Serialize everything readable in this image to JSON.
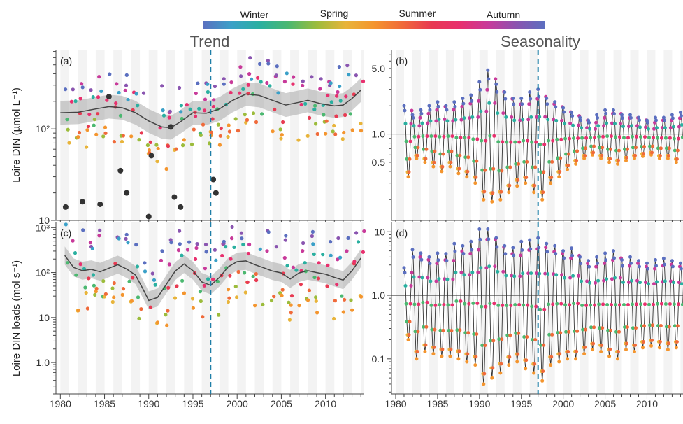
{
  "legend": {
    "labels": [
      "Winter",
      "Spring",
      "Summer",
      "Autumn"
    ],
    "gradient": [
      "#5b6fc0",
      "#3aa0c8",
      "#2ab0a0",
      "#4bb870",
      "#9cbc3c",
      "#e8b43a",
      "#f4952e",
      "#f06a3a",
      "#e83a52",
      "#e8306e",
      "#c83a9a",
      "#8a55b0",
      "#5b6fc0"
    ]
  },
  "titles": {
    "left": "Trend",
    "right": "Seasonality"
  },
  "vline_year": 1997,
  "chart_data": [
    {
      "id": "a",
      "panel_label": "(a)",
      "type": "scatter",
      "ylabel": "Loire DIN (µmol L⁻¹)",
      "scale": "log",
      "ylim": [
        10,
        720
      ],
      "xlim": [
        1979.5,
        2014.3
      ],
      "y_ticks": [
        {
          "value": 10,
          "label": "10"
        },
        {
          "value": 100,
          "label": "10²"
        }
      ],
      "x_ticks": [
        1980,
        1985,
        1990,
        1995,
        2000,
        2005,
        2010
      ],
      "trend": [
        [
          1980,
          150
        ],
        [
          1982,
          152
        ],
        [
          1984,
          165
        ],
        [
          1985.5,
          175
        ],
        [
          1987,
          170
        ],
        [
          1988.5,
          150
        ],
        [
          1990,
          122
        ],
        [
          1991.5,
          105
        ],
        [
          1992.5,
          103
        ],
        [
          1993.5,
          118
        ],
        [
          1995,
          150
        ],
        [
          1996.5,
          148
        ],
        [
          1998,
          165
        ],
        [
          1999.5,
          205
        ],
        [
          2001,
          240
        ],
        [
          2002.5,
          232
        ],
        [
          2004,
          205
        ],
        [
          2005.5,
          182
        ],
        [
          2007,
          195
        ],
        [
          2008,
          205
        ],
        [
          2009.5,
          188
        ],
        [
          2011,
          178
        ],
        [
          2012,
          182
        ],
        [
          2013,
          215
        ],
        [
          2014,
          265
        ]
      ],
      "band_halfwidth": 0.13,
      "highlight_points": [
        [
          1980.6,
          14
        ],
        [
          1982.5,
          16
        ],
        [
          1984.5,
          15
        ],
        [
          1985.5,
          225
        ],
        [
          1986.8,
          35
        ],
        [
          1987.5,
          20
        ],
        [
          1990,
          11
        ],
        [
          1990.3,
          51
        ],
        [
          1992.5,
          105
        ],
        [
          1992.9,
          18
        ],
        [
          1993.6,
          14
        ],
        [
          1997.3,
          28
        ],
        [
          1997.6,
          20
        ]
      ],
      "point_gen": {
        "top": 330,
        "low": 70,
        "spread": 0.12,
        "seed": 11
      }
    },
    {
      "id": "b",
      "panel_label": "(b)",
      "type": "line",
      "scale": "log",
      "ylim": [
        0.12,
        7.8
      ],
      "xlim": [
        1979.5,
        2014.3
      ],
      "y_ticks": [
        {
          "value": 0.5,
          "label": "0.5"
        },
        {
          "value": 1.0,
          "label": "1.0"
        },
        {
          "value": 5.0,
          "label": "5.0"
        }
      ],
      "x_ticks": [
        1980,
        1985,
        1990,
        1995,
        2000,
        2005,
        2010
      ],
      "ref_line": 1.0,
      "peaks": [
        {
          "year": 1981,
          "max": 2.0,
          "min": 0.35
        },
        {
          "year": 1982,
          "max": 1.6,
          "min": 0.55
        },
        {
          "year": 1983,
          "max": 1.8,
          "min": 0.5
        },
        {
          "year": 1984,
          "max": 2.0,
          "min": 0.45
        },
        {
          "year": 1985,
          "max": 2.2,
          "min": 0.4
        },
        {
          "year": 1986,
          "max": 2.0,
          "min": 0.45
        },
        {
          "year": 1987,
          "max": 2.2,
          "min": 0.38
        },
        {
          "year": 1988,
          "max": 2.4,
          "min": 0.35
        },
        {
          "year": 1989,
          "max": 2.6,
          "min": 0.3
        },
        {
          "year": 1990,
          "max": 3.6,
          "min": 0.2
        },
        {
          "year": 1991,
          "max": 4.8,
          "min": 0.19
        },
        {
          "year": 1992,
          "max": 3.4,
          "min": 0.2
        },
        {
          "year": 1993,
          "max": 2.8,
          "min": 0.24
        },
        {
          "year": 1994,
          "max": 2.4,
          "min": 0.28
        },
        {
          "year": 1995,
          "max": 2.4,
          "min": 0.3
        },
        {
          "year": 1996,
          "max": 2.8,
          "min": 0.24
        },
        {
          "year": 1997,
          "max": 3.0,
          "min": 0.2
        },
        {
          "year": 1998,
          "max": 2.4,
          "min": 0.3
        },
        {
          "year": 1999,
          "max": 2.2,
          "min": 0.35
        },
        {
          "year": 2000,
          "max": 1.9,
          "min": 0.42
        },
        {
          "year": 2001,
          "max": 1.7,
          "min": 0.48
        },
        {
          "year": 2002,
          "max": 1.5,
          "min": 0.55
        },
        {
          "year": 2003,
          "max": 1.4,
          "min": 0.6
        },
        {
          "year": 2004,
          "max": 1.6,
          "min": 0.55
        },
        {
          "year": 2005,
          "max": 1.8,
          "min": 0.5
        },
        {
          "year": 2006,
          "max": 1.8,
          "min": 0.48
        },
        {
          "year": 2007,
          "max": 1.6,
          "min": 0.52
        },
        {
          "year": 2008,
          "max": 1.6,
          "min": 0.55
        },
        {
          "year": 2009,
          "max": 1.5,
          "min": 0.58
        },
        {
          "year": 2010,
          "max": 1.4,
          "min": 0.6
        },
        {
          "year": 2011,
          "max": 1.5,
          "min": 0.55
        },
        {
          "year": 2012,
          "max": 1.5,
          "min": 0.55
        },
        {
          "year": 2013,
          "max": 1.6,
          "min": 0.5
        },
        {
          "year": 2014,
          "max": 1.7,
          "min": 0.5
        }
      ]
    },
    {
      "id": "c",
      "panel_label": "(c)",
      "type": "scatter",
      "ylabel": "Loire DIN loads (mol s⁻¹)",
      "scale": "log",
      "ylim": [
        0.2,
        1300
      ],
      "xlim": [
        1979.5,
        2014.3
      ],
      "y_ticks": [
        {
          "value": 1,
          "label": "1.0"
        },
        {
          "value": 10,
          "label": "10"
        },
        {
          "value": 100,
          "label": "10²"
        },
        {
          "value": 1000,
          "label": "10³"
        }
      ],
      "x_ticks": [
        1980,
        1985,
        1990,
        1995,
        2000,
        2005,
        2010
      ],
      "trend": [
        [
          1980.5,
          240
        ],
        [
          1981.5,
          130
        ],
        [
          1982.5,
          110
        ],
        [
          1983.5,
          118
        ],
        [
          1984.5,
          104
        ],
        [
          1985.5,
          125
        ],
        [
          1986.5,
          150
        ],
        [
          1987.5,
          120
        ],
        [
          1988.5,
          88
        ],
        [
          1989.3,
          45
        ],
        [
          1990,
          24
        ],
        [
          1991,
          28
        ],
        [
          1992,
          55
        ],
        [
          1993,
          108
        ],
        [
          1994,
          155
        ],
        [
          1995,
          110
        ],
        [
          1996,
          62
        ],
        [
          1997,
          52
        ],
        [
          1998,
          78
        ],
        [
          1999,
          135
        ],
        [
          2000,
          175
        ],
        [
          2001,
          182
        ],
        [
          2002,
          150
        ],
        [
          2003,
          128
        ],
        [
          2004,
          108
        ],
        [
          2005,
          98
        ],
        [
          2006,
          72
        ],
        [
          2007,
          98
        ],
        [
          2008,
          110
        ],
        [
          2009,
          100
        ],
        [
          2010,
          92
        ],
        [
          2011,
          78
        ],
        [
          2012,
          68
        ],
        [
          2013,
          110
        ],
        [
          2014,
          210
        ]
      ],
      "band_halfwidth": 0.2,
      "point_gen": {
        "top": 420,
        "low": 15,
        "spread": 0.25,
        "seed": 29
      }
    },
    {
      "id": "d",
      "panel_label": "(d)",
      "type": "line",
      "scale": "log",
      "ylim": [
        0.028,
        14
      ],
      "xlim": [
        1979.5,
        2014.3
      ],
      "y_ticks": [
        {
          "value": 0.1,
          "label": "0.1"
        },
        {
          "value": 1.0,
          "label": "1.0"
        },
        {
          "value": 10,
          "label": "10"
        }
      ],
      "x_ticks": [
        1980,
        1985,
        1990,
        1995,
        2000,
        2005,
        2010
      ],
      "ref_line": 1.0,
      "peaks": [
        {
          "year": 1981,
          "max": 2.7,
          "min": 0.2
        },
        {
          "year": 1982,
          "max": 5.2,
          "min": 0.1
        },
        {
          "year": 1983,
          "max": 4.6,
          "min": 0.13
        },
        {
          "year": 1984,
          "max": 4.0,
          "min": 0.12
        },
        {
          "year": 1985,
          "max": 4.6,
          "min": 0.11
        },
        {
          "year": 1986,
          "max": 4.5,
          "min": 0.11
        },
        {
          "year": 1987,
          "max": 6.5,
          "min": 0.1
        },
        {
          "year": 1988,
          "max": 6.0,
          "min": 0.09
        },
        {
          "year": 1989,
          "max": 7.0,
          "min": 0.08
        },
        {
          "year": 1990,
          "max": 11,
          "min": 0.04
        },
        {
          "year": 1991,
          "max": 11,
          "min": 0.05
        },
        {
          "year": 1992,
          "max": 8.0,
          "min": 0.06
        },
        {
          "year": 1993,
          "max": 6.0,
          "min": 0.08
        },
        {
          "year": 1994,
          "max": 5.6,
          "min": 0.09
        },
        {
          "year": 1995,
          "max": 7.0,
          "min": 0.07
        },
        {
          "year": 1996,
          "max": 7.4,
          "min": 0.06
        },
        {
          "year": 1997,
          "max": 8.0,
          "min": 0.045
        },
        {
          "year": 1998,
          "max": 6.5,
          "min": 0.08
        },
        {
          "year": 1999,
          "max": 6.0,
          "min": 0.09
        },
        {
          "year": 2000,
          "max": 5.0,
          "min": 0.1
        },
        {
          "year": 2001,
          "max": 5.5,
          "min": 0.1
        },
        {
          "year": 2002,
          "max": 4.0,
          "min": 0.12
        },
        {
          "year": 2003,
          "max": 3.5,
          "min": 0.14
        },
        {
          "year": 2004,
          "max": 4.0,
          "min": 0.13
        },
        {
          "year": 2005,
          "max": 4.6,
          "min": 0.11
        },
        {
          "year": 2006,
          "max": 5.0,
          "min": 0.1
        },
        {
          "year": 2007,
          "max": 3.6,
          "min": 0.14
        },
        {
          "year": 2008,
          "max": 4.0,
          "min": 0.13
        },
        {
          "year": 2009,
          "max": 3.5,
          "min": 0.15
        },
        {
          "year": 2010,
          "max": 3.2,
          "min": 0.16
        },
        {
          "year": 2011,
          "max": 3.6,
          "min": 0.15
        },
        {
          "year": 2012,
          "max": 3.8,
          "min": 0.14
        },
        {
          "year": 2013,
          "max": 3.5,
          "min": 0.15
        },
        {
          "year": 2014,
          "max": 3.2,
          "min": 0.16
        }
      ]
    }
  ]
}
